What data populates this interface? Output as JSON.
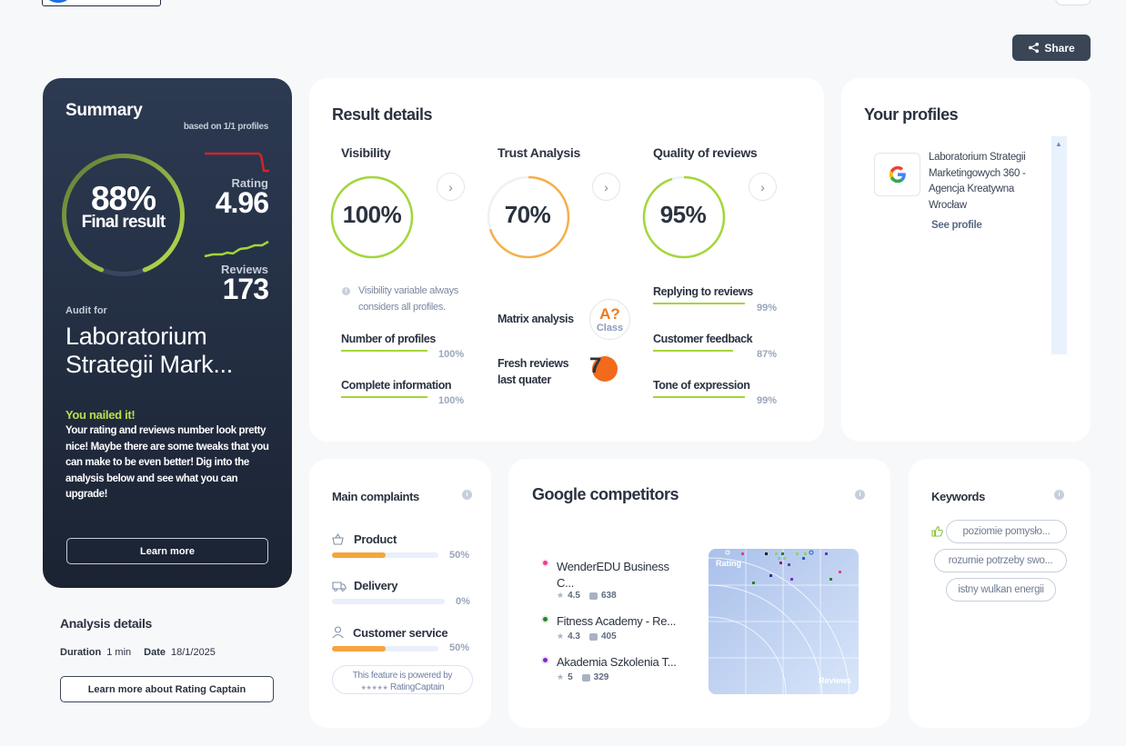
{
  "header": {
    "share_label": "Share"
  },
  "summary": {
    "title": "Summary",
    "based_on": "based on 1/1 profiles",
    "final_percent": "88%",
    "final_label": "Final result",
    "final_value": 0.88,
    "rating_label": "Rating",
    "rating_value": "4.96",
    "reviews_label": "Reviews",
    "reviews_value": "173",
    "audit_for_label": "Audit for",
    "company_name": "Laboratorium Strategii Mark...",
    "nailed_heading": "You nailed it!",
    "nailed_text": "Your rating and reviews number look pretty nice! Maybe there are some tweaks that you can make to be even better! Dig into the analysis below and see what you can upgrade!",
    "learn_more_label": "Learn more"
  },
  "analysis": {
    "title": "Analysis details",
    "duration_label": "Duration",
    "duration_value": "1 min",
    "date_label": "Date",
    "date_value": "18/1/2025",
    "learn_more_label": "Learn more about Rating Captain"
  },
  "result_details": {
    "title": "Result details",
    "visibility": {
      "title": "Visibility",
      "value": "100%",
      "fraction": 1.0,
      "note": "Visibility variable always considers all profiles.",
      "metrics": [
        {
          "label": "Number of profiles",
          "value": "100%"
        },
        {
          "label": "Complete information",
          "value": "100%"
        }
      ]
    },
    "trust": {
      "title": "Trust Analysis",
      "value": "70%",
      "fraction": 0.7,
      "matrix_label": "Matrix analysis",
      "matrix_grade": "A?",
      "matrix_class": "Class",
      "fresh_label": "Fresh reviews last quater",
      "fresh_value": "7"
    },
    "quality": {
      "title": "Quality of reviews",
      "value": "95%",
      "fraction": 0.95,
      "metrics": [
        {
          "label": "Replying to reviews",
          "value": "99%"
        },
        {
          "label": "Customer feedback",
          "value": "87%"
        },
        {
          "label": "Tone of expression",
          "value": "99%"
        }
      ]
    }
  },
  "profiles": {
    "title": "Your profiles",
    "items": [
      {
        "name": "Laboratorium Strategii Marketingowych 360 - Agencja Kreatywna Wrocław",
        "see_profile": "See profile"
      }
    ]
  },
  "complaints": {
    "title": "Main complaints",
    "items": [
      {
        "label": "Product",
        "value": "50%",
        "fraction": 0.5
      },
      {
        "label": "Delivery",
        "value": "0%",
        "fraction": 0
      },
      {
        "label": "Customer service",
        "value": "50%",
        "fraction": 0.5
      }
    ],
    "powered_by": "This feature is powered by",
    "powered_brand": "RatingCaptain"
  },
  "competitors": {
    "title": "Google competitors",
    "items": [
      {
        "name": "WenderEDU Business C...",
        "rating": "4.5",
        "reviews": "638",
        "color": "#e83e8c"
      },
      {
        "name": "Fitness Academy - Re...",
        "rating": "4.3",
        "reviews": "405",
        "color": "#2e7d32"
      },
      {
        "name": "Akademia Szkolenia T...",
        "rating": "5",
        "reviews": "329",
        "color": "#7b2fbf"
      }
    ],
    "plot_rating_label": "Rating",
    "plot_reviews_label": "Reviews"
  },
  "keywords": {
    "title": "Keywords",
    "items": [
      "poziomie pomysło...",
      "rozumie potrzeby swo...",
      "istny wulkan energii"
    ]
  }
}
